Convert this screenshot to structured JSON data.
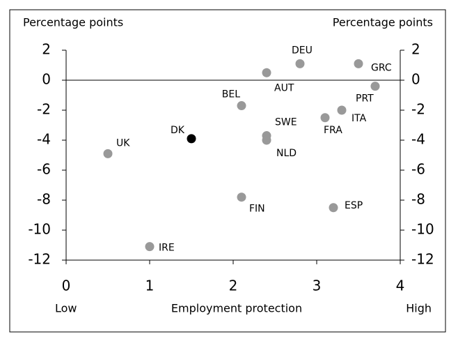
{
  "chart_data": {
    "type": "scatter",
    "y_label_left": "Percentage points",
    "y_label_right": "Percentage points",
    "x_label": "Employment protection",
    "x_low": "Low",
    "x_high": "High",
    "labels": [
      "UK",
      "DK",
      "IRE",
      "BEL",
      "FIN",
      "AUT",
      "SWE",
      "NLD",
      "DEU",
      "FRA",
      "ITA",
      "ESP",
      "GRC",
      "PRT"
    ],
    "x": [
      0.5,
      1.5,
      1.0,
      2.1,
      2.1,
      2.4,
      2.4,
      2.4,
      2.8,
      3.1,
      3.3,
      3.2,
      3.5,
      3.7
    ],
    "values": [
      -4.9,
      -3.9,
      -11.1,
      -1.7,
      -7.8,
      0.5,
      -3.7,
      -4.0,
      1.1,
      -2.5,
      -2.0,
      -8.5,
      1.1,
      -0.4
    ],
    "colors": [
      "#999999",
      "#000000",
      "#999999",
      "#999999",
      "#999999",
      "#999999",
      "#999999",
      "#999999",
      "#999999",
      "#999999",
      "#999999",
      "#999999",
      "#999999",
      "#999999"
    ],
    "xlim": [
      0,
      4
    ],
    "xticks": [
      0,
      1,
      2,
      3,
      4
    ],
    "ylim": [
      -12,
      2
    ],
    "yticks": [
      2,
      0,
      -2,
      -4,
      -6,
      -8,
      -10,
      -12
    ],
    "y2lim": [
      -12,
      2
    ],
    "y2ticks": [
      2,
      0,
      -2,
      -4,
      -6,
      -8,
      -10,
      -12
    ]
  }
}
